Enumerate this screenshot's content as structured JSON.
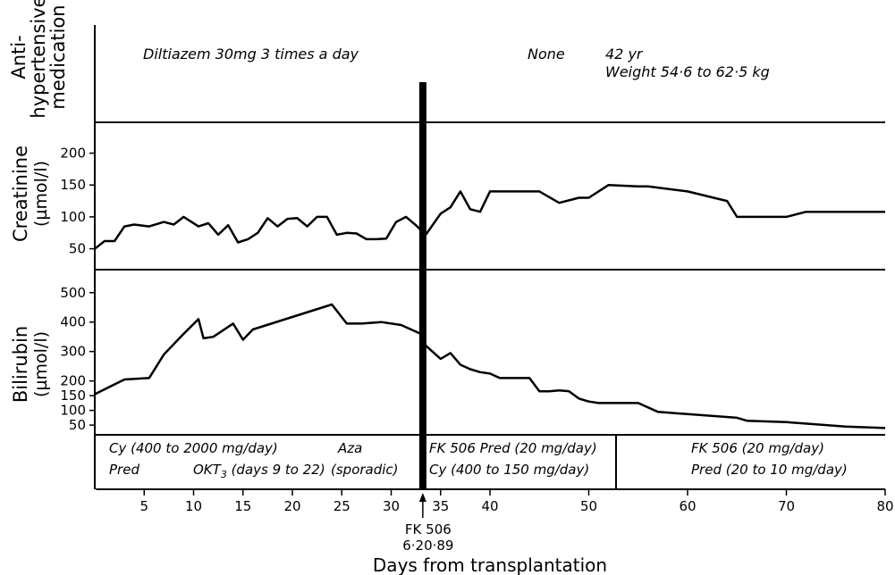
{
  "chart_data": [
    {
      "panel": "antihypertensive",
      "type": "table",
      "ylabel": [
        "Anti-",
        "hypertensive",
        "medication"
      ],
      "annotations": [
        {
          "text": "Diltiazem 30mg 3 times a day",
          "x": 1
        },
        {
          "text": "None",
          "x": 42
        },
        {
          "text": "42 yr",
          "x": 48
        },
        {
          "text": "Weight 54·6 to 62·5 kg",
          "x": 48
        }
      ]
    },
    {
      "panel": "creatinine",
      "type": "line",
      "ylabel": [
        "Creatinine",
        "(µmol/l)"
      ],
      "ylim": [
        20,
        240
      ],
      "yticks": [
        50,
        100,
        150,
        200
      ],
      "series": [
        {
          "x": [
            0,
            1,
            2,
            3,
            4,
            5.5,
            7,
            8,
            9,
            10.5,
            11.5,
            12.5,
            13.5,
            14.5,
            15.5,
            16.5,
            17.5,
            18.5,
            19.5,
            20.5,
            21.5,
            22.5,
            23.5,
            24.5,
            25.5,
            26.5,
            27.5,
            28.5,
            29.5,
            30.5,
            31.5,
            32.5,
            33.5,
            35,
            36,
            37,
            38,
            39,
            40,
            41,
            45,
            47,
            49,
            50,
            52,
            55,
            56,
            60,
            64,
            65,
            68,
            70,
            72,
            80
          ],
          "y": [
            50,
            62,
            62,
            85,
            88,
            85,
            92,
            88,
            100,
            85,
            90,
            72,
            87,
            60,
            65,
            75,
            98,
            85,
            97,
            98,
            85,
            100,
            100,
            72,
            75,
            74,
            65,
            65,
            66,
            92,
            100,
            87,
            72,
            105,
            115,
            140,
            112,
            108,
            140,
            140,
            140,
            122,
            130,
            130,
            150,
            148,
            148,
            140,
            125,
            100,
            100,
            100,
            108,
            108
          ]
        }
      ]
    },
    {
      "panel": "bilirubin",
      "type": "line",
      "ylabel": [
        "Bilirubin",
        "(µmol/l)"
      ],
      "ylim": [
        20,
        560
      ],
      "yticks": [
        50,
        100,
        150,
        200,
        300,
        400,
        500
      ],
      "series": [
        {
          "x": [
            0,
            3,
            5.5,
            7,
            9,
            10.5,
            11,
            12,
            14,
            15,
            16,
            24,
            25.5,
            27,
            29,
            31,
            33,
            33.5,
            35,
            36,
            37,
            38,
            39,
            40,
            41,
            42,
            44,
            45,
            46,
            47,
            48,
            49,
            50,
            51,
            55,
            57,
            65,
            66,
            70,
            76,
            80
          ],
          "y": [
            155,
            205,
            210,
            290,
            360,
            410,
            345,
            350,
            395,
            340,
            375,
            460,
            395,
            395,
            400,
            390,
            360,
            320,
            275,
            295,
            255,
            240,
            230,
            225,
            210,
            210,
            210,
            165,
            165,
            168,
            165,
            140,
            130,
            125,
            125,
            95,
            75,
            65,
            60,
            45,
            40
          ]
        }
      ]
    }
  ],
  "x_axis": {
    "xlabel": "Days from transplantation",
    "xlim": [
      0,
      80
    ],
    "ticks": [
      5,
      10,
      15,
      20,
      25,
      30,
      35,
      40,
      50,
      60,
      70,
      80
    ],
    "event_day": 33.2,
    "event_label": [
      "FK 506",
      "6·20·89"
    ]
  },
  "regimen": {
    "before": {
      "row1_a": "Cy (400 to 2000 mg/day)",
      "row1_b": "Aza",
      "row2_a": "Pred",
      "row2_b_pre": "OKT",
      "row2_b_sub": "3",
      "row2_b_post": " (days 9 to 22)",
      "row2_c": "(sporadic)"
    },
    "after_early": {
      "row1": "FK 506  Pred (20 mg/day)",
      "row2": "Cy (400 to 150 mg/day)"
    },
    "after_late": {
      "row1": "FK 506 (20 mg/day)",
      "row2": "Pred (20 to 10 mg/day)"
    }
  }
}
